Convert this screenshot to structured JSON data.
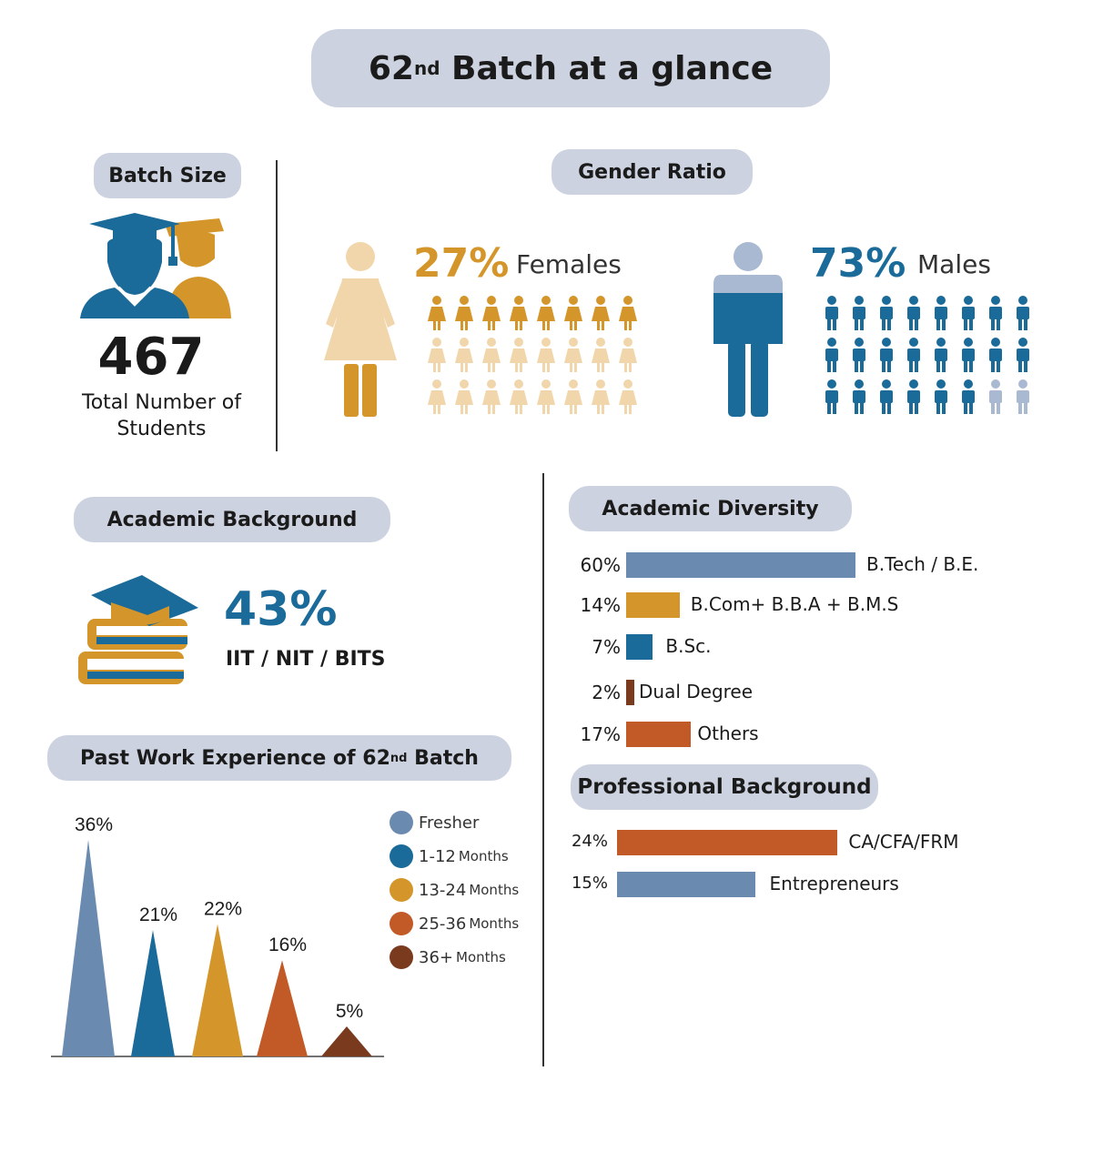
{
  "title": {
    "main": "62",
    "sup": "nd",
    "rest": " Batch at a glance"
  },
  "batch_size": {
    "heading": "Batch Size",
    "number": "467",
    "caption_line1": "Total Number of",
    "caption_line2": "Students"
  },
  "gender": {
    "heading": "Gender Ratio",
    "female_pct": "27%",
    "female_label": "Females",
    "male_pct": "73%",
    "male_label": "Males",
    "female_color": "#d4962a",
    "female_light": "#f2d6ab",
    "male_color": "#1a6a9a",
    "male_light": "#a9b9d1"
  },
  "academic_background": {
    "heading": "Academic Background",
    "pct": "43%",
    "label": "IIT / NIT / BITS"
  },
  "academic_diversity": {
    "heading": "Academic Diversity",
    "items": [
      {
        "pct": "60%",
        "label": "B.Tech / B.E.",
        "value": 60,
        "color": "#6a8ab0"
      },
      {
        "pct": "14%",
        "label": "B.Com+ B.B.A + B.M.S",
        "value": 14,
        "color": "#d4962a"
      },
      {
        "pct": "7%",
        "label": "B.Sc.",
        "value": 7,
        "color": "#1a6a9a"
      },
      {
        "pct": "2%",
        "label": "Dual Degree",
        "value": 2,
        "color": "#7a3a1e"
      },
      {
        "pct": "17%",
        "label": "Others",
        "value": 17,
        "color": "#c25a28"
      }
    ]
  },
  "professional_background": {
    "heading": "Professional Background",
    "items": [
      {
        "pct": "24%",
        "label": "CA/CFA/FRM",
        "value": 24,
        "color": "#c25a28"
      },
      {
        "pct": "15%",
        "label": "Entrepreneurs",
        "value": 15,
        "color": "#6a8ab0"
      }
    ]
  },
  "work_experience": {
    "heading_main": "Past Work Experience of 62",
    "heading_sup": "nd",
    "heading_rest": " Batch",
    "legend": [
      {
        "main": "Fresher",
        "small": "",
        "color": "#6a8ab0"
      },
      {
        "main": "1-12",
        "small": "Months",
        "color": "#1a6a9a"
      },
      {
        "main": "13-24",
        "small": "Months",
        "color": "#d4962a"
      },
      {
        "main": "25-36",
        "small": "Months",
        "color": "#c25a28"
      },
      {
        "main": "36+",
        "small": "Months",
        "color": "#7a3a1e"
      }
    ]
  },
  "chart_data": [
    {
      "type": "bar",
      "title": "Past Work Experience of 62nd Batch",
      "categories": [
        "Fresher",
        "1-12 Months",
        "13-24 Months",
        "25-36 Months",
        "36+ Months"
      ],
      "values": [
        36,
        21,
        22,
        16,
        5
      ],
      "labels": [
        "36%",
        "21%",
        "22%",
        "16%",
        "5%"
      ],
      "colors": [
        "#6a8ab0",
        "#1a6a9a",
        "#d4962a",
        "#c25a28",
        "#7a3a1e"
      ]
    },
    {
      "type": "bar",
      "title": "Academic Diversity",
      "categories": [
        "B.Tech / B.E.",
        "B.Com+ B.B.A + B.M.S",
        "B.Sc.",
        "Dual Degree",
        "Others"
      ],
      "values": [
        60,
        14,
        7,
        2,
        17
      ]
    },
    {
      "type": "bar",
      "title": "Professional Background",
      "categories": [
        "CA/CFA/FRM",
        "Entrepreneurs"
      ],
      "values": [
        24,
        15
      ]
    },
    {
      "type": "pie",
      "title": "Gender Ratio",
      "categories": [
        "Females",
        "Males"
      ],
      "values": [
        27,
        73
      ]
    }
  ]
}
